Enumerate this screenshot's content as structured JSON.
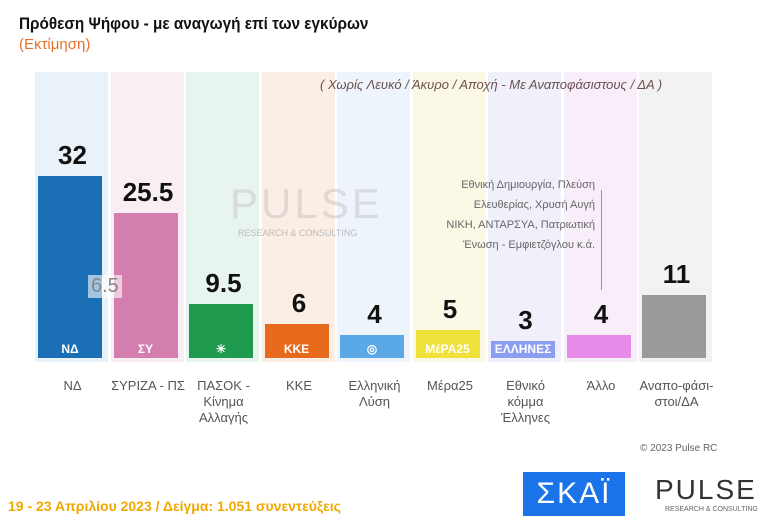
{
  "header": {
    "title": "Πρόθεση Ψήφου - με αναγωγή επί των εγκύρων",
    "subtitle": "(Εκτίμηση)",
    "note": "( Χωρίς Λευκό / Άκυρο / Αποχή  -  Με Αναποφάσιστους / ΔΑ )"
  },
  "chart_data": {
    "type": "bar",
    "categories": [
      "ΝΔ",
      "ΣΥΡΙΖΑ - ΠΣ",
      "ΠΑΣΟΚ - Κίνημα Αλλαγής",
      "ΚΚΕ",
      "Ελληνική Λύση",
      "Μέρα25",
      "Εθνικό κόμμα Έλληνες",
      "Άλλο",
      "Αναπο-φάσι-στοι/ΔΑ"
    ],
    "values": [
      32,
      25.5,
      9.5,
      6,
      4,
      5,
      3,
      4,
      11
    ],
    "value_labels": [
      "32",
      "25.5",
      "9.5",
      "6",
      "4",
      "5",
      "3",
      "4",
      "11"
    ],
    "colors": [
      "#1a6fb5",
      "#d47eb0",
      "#1f9a4f",
      "#e86a1c",
      "#5aa8e6",
      "#f0e03a",
      "#8c9ef0",
      "#e88ae8",
      "#9a9a9a"
    ],
    "bg_colors": [
      "#e8f2f8",
      "#f9eef4",
      "#e8f4ee",
      "#fbeee4",
      "#eef4fb",
      "#fbf8e6",
      "#f0f0fb",
      "#f8eefa",
      "#f2f2f2"
    ],
    "ylim": [
      0,
      34
    ],
    "difference_label": "6.5",
    "other_note": [
      "Εθνική Δημιουργία, Πλεύση",
      "Ελευθερίας, Χρυσή Αυγή",
      "ΝΙΚΗ, ΑΝΤΑΡΣΥΑ, Πατριωτική",
      "Ένωση - Εμφιετζόγλου  κ.ά."
    ]
  },
  "logos": [
    "ΝΔ",
    "ΣΥ",
    "☀",
    "ΚΚΕ",
    "◎",
    "ΜέΡΑ25",
    "ΕΛΛΗΝΕΣ",
    "",
    ""
  ],
  "watermark": {
    "name": "PULSE",
    "sub": "RESEARCH & CONSULTING"
  },
  "footer": {
    "dates": "19 - 23  Απριλίου  2023  /  Δείγμα:  1.051 συνεντεύξεις",
    "copyright": "© 2023 Pulse RC",
    "skai": "ΣΚΑΪ",
    "pulse": "PULSE",
    "pulse_sub": "RESEARCH & CONSULTING"
  }
}
